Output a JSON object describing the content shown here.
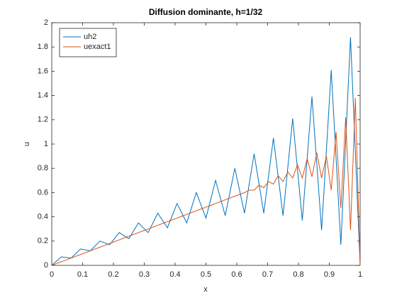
{
  "chart_data": {
    "type": "line",
    "title": "Diffusion dominante, h=1/32",
    "xlabel": "x",
    "ylabel": "u",
    "xlim": [
      0,
      1
    ],
    "ylim": [
      0,
      2
    ],
    "xticks": [
      0,
      0.1,
      0.2,
      0.3,
      0.4,
      0.5,
      0.6,
      0.7,
      0.8,
      0.9,
      1
    ],
    "yticks": [
      0,
      0.2,
      0.4,
      0.6,
      0.8,
      1,
      1.2,
      1.4,
      1.6,
      1.8,
      2
    ],
    "legend": "northwest",
    "grid": false,
    "series": [
      {
        "name": "uh2",
        "color": "#0072bd",
        "x": [
          0,
          0.03125,
          0.0625,
          0.09375,
          0.125,
          0.15625,
          0.1875,
          0.21875,
          0.25,
          0.28125,
          0.3125,
          0.34375,
          0.375,
          0.40625,
          0.4375,
          0.46875,
          0.5,
          0.53125,
          0.5625,
          0.59375,
          0.625,
          0.65625,
          0.6875,
          0.71875,
          0.75,
          0.78125,
          0.8125,
          0.84375,
          0.875,
          0.90625,
          0.9375,
          0.96875,
          1
        ],
        "values": [
          0,
          0.07,
          0.06,
          0.135,
          0.12,
          0.2,
          0.17,
          0.27,
          0.22,
          0.35,
          0.27,
          0.43,
          0.31,
          0.51,
          0.35,
          0.6,
          0.39,
          0.7,
          0.41,
          0.8,
          0.43,
          0.92,
          0.43,
          1.05,
          0.41,
          1.21,
          0.37,
          1.39,
          0.29,
          1.61,
          0.17,
          1.88,
          0
        ]
      },
      {
        "name": "uexact1",
        "color": "#d95319",
        "x": [
          0,
          0.015625,
          0.03125,
          0.046875,
          0.0625,
          0.078125,
          0.09375,
          0.109375,
          0.125,
          0.140625,
          0.15625,
          0.171875,
          0.1875,
          0.203125,
          0.21875,
          0.234375,
          0.25,
          0.265625,
          0.28125,
          0.296875,
          0.3125,
          0.328125,
          0.34375,
          0.359375,
          0.375,
          0.390625,
          0.40625,
          0.421875,
          0.4375,
          0.453125,
          0.46875,
          0.484375,
          0.5,
          0.515625,
          0.53125,
          0.546875,
          0.5625,
          0.578125,
          0.59375,
          0.609375,
          0.625,
          0.640625,
          0.65625,
          0.671875,
          0.6875,
          0.703125,
          0.71875,
          0.734375,
          0.75,
          0.765625,
          0.78125,
          0.796875,
          0.8125,
          0.828125,
          0.84375,
          0.859375,
          0.875,
          0.890625,
          0.90625,
          0.921875,
          0.9375,
          0.953125,
          0.96875,
          0.984375,
          1
        ],
        "values": [
          0,
          0.015,
          0.03,
          0.045,
          0.06,
          0.075,
          0.09,
          0.105,
          0.12,
          0.135,
          0.15,
          0.165,
          0.18,
          0.195,
          0.21,
          0.225,
          0.24,
          0.255,
          0.27,
          0.285,
          0.3,
          0.315,
          0.33,
          0.345,
          0.36,
          0.375,
          0.39,
          0.405,
          0.42,
          0.435,
          0.45,
          0.465,
          0.48,
          0.495,
          0.51,
          0.525,
          0.54,
          0.555,
          0.57,
          0.585,
          0.6,
          0.62,
          0.62,
          0.66,
          0.64,
          0.69,
          0.67,
          0.74,
          0.69,
          0.77,
          0.72,
          0.83,
          0.72,
          0.88,
          0.73,
          0.93,
          0.72,
          0.9,
          0.62,
          1.1,
          0.47,
          1.22,
          0.29,
          1.38,
          0
        ]
      }
    ]
  }
}
